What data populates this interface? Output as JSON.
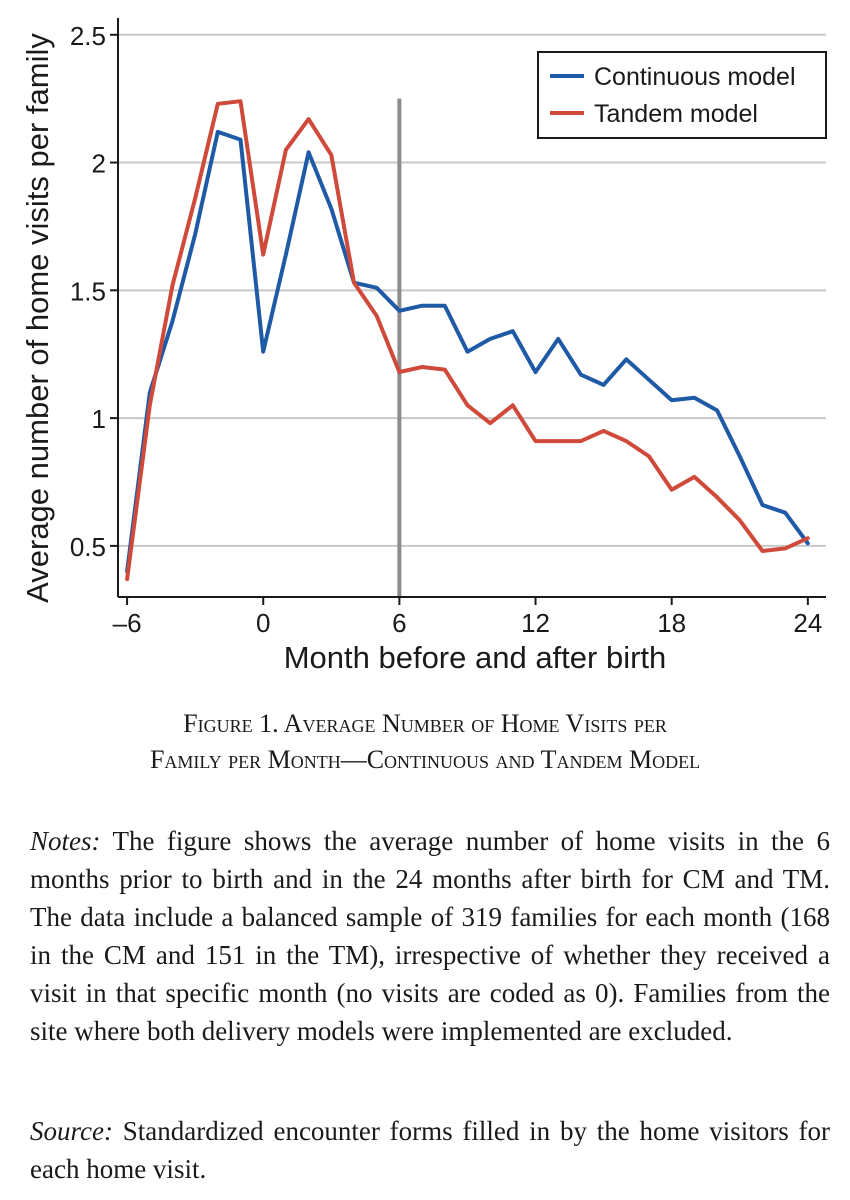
{
  "chart_data": {
    "type": "line",
    "title": "",
    "xlabel": "Month before and after birth",
    "ylabel": "Average number of home visits per family",
    "xlim": [
      -6.4,
      24.8
    ],
    "ylim": [
      0.3,
      2.55
    ],
    "xticks": [
      -6,
      0,
      6,
      12,
      18,
      24
    ],
    "xtick_labels": [
      "–6",
      "0",
      "6",
      "12",
      "18",
      "24"
    ],
    "yticks": [
      0.5,
      1,
      1.5,
      2,
      2.5
    ],
    "ytick_labels": [
      "0.5",
      "1",
      "1.5",
      "2",
      "2.5"
    ],
    "grid": true,
    "legend_position": "top-right",
    "vline_x": 6,
    "x": [
      -6,
      -5,
      -4,
      -3,
      -2,
      -1,
      0,
      1,
      2,
      3,
      4,
      5,
      6,
      7,
      8,
      9,
      10,
      11,
      12,
      13,
      14,
      15,
      16,
      17,
      18,
      19,
      20,
      21,
      22,
      23,
      24
    ],
    "series": [
      {
        "name": "Continuous model",
        "color": "#1f5aa6",
        "values": [
          0.4,
          1.1,
          1.38,
          1.72,
          2.12,
          2.09,
          1.26,
          1.64,
          2.04,
          1.82,
          1.53,
          1.51,
          1.42,
          1.44,
          1.44,
          1.26,
          1.31,
          1.34,
          1.18,
          1.31,
          1.17,
          1.13,
          1.23,
          1.15,
          1.07,
          1.08,
          1.03,
          0.85,
          0.66,
          0.63,
          0.51
        ]
      },
      {
        "name": "Tandem model",
        "color": "#d04a3c",
        "values": [
          0.37,
          1.05,
          1.52,
          1.86,
          2.23,
          2.24,
          1.64,
          2.05,
          2.17,
          2.03,
          1.53,
          1.4,
          1.18,
          1.2,
          1.19,
          1.05,
          0.98,
          1.05,
          0.91,
          0.91,
          0.91,
          0.95,
          0.91,
          0.85,
          0.72,
          0.77,
          0.69,
          0.6,
          0.48,
          0.49,
          0.53
        ]
      }
    ]
  },
  "caption": {
    "line1": "Figure 1. Average Number of Home Visits per",
    "line2": "Family per Month—Continuous and Tandem Model"
  },
  "notes": {
    "lead": "Notes:",
    "text": " The figure shows the average number of home visits in the 6 months prior to birth and in the 24 months after birth for CM and TM. The data include a balanced sample of 319 families for each month (168 in the CM and 151 in the TM), irrespective of whether they received a visit in that specific month (no visits are coded as 0). Families from the site where both delivery models were implemented are excluded."
  },
  "source": {
    "lead": "Source:",
    "text": " Standardized encounter forms filled in by the home visitors for each home visit."
  }
}
